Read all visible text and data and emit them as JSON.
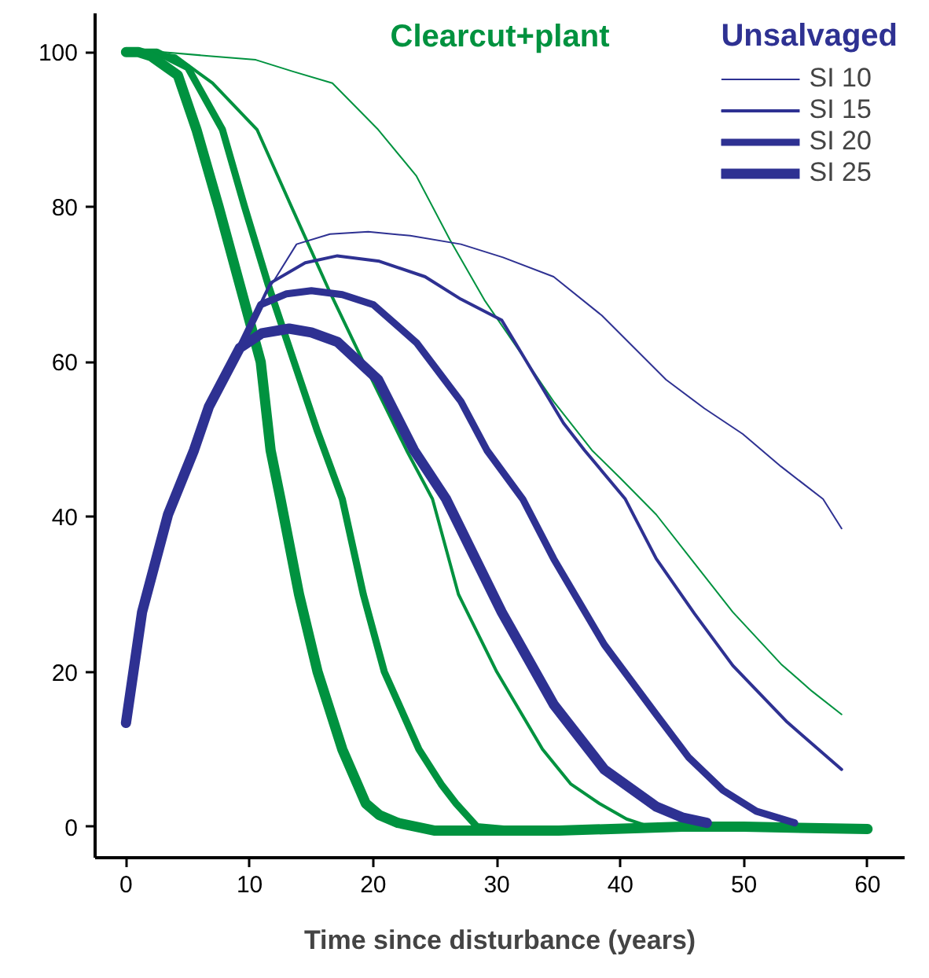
{
  "chart_data": {
    "type": "line",
    "xlabel": "Time since disturbance (years)",
    "legend_title": "Unsalvaged",
    "annotations": [
      "Clearcut+plant"
    ],
    "legend": "top right",
    "grid": false,
    "marker": "none",
    "line_style": "solid",
    "xlim": [
      -2.5,
      63
    ],
    "ylim": [
      -4,
      105
    ],
    "xticks": [
      0,
      10,
      20,
      30,
      40,
      50,
      60
    ],
    "yticks": [
      0,
      20,
      40,
      60,
      80,
      100
    ],
    "series": [
      {
        "color": "#00923f",
        "x": [
          0,
          3,
          6.7,
          10.5,
          13.5,
          16.7,
          20.4,
          23.5,
          26.2,
          29,
          32,
          34.6,
          37.7,
          40,
          42.9,
          46,
          49.1,
          53,
          55.5,
          57.9
        ],
        "values": [
          100,
          100,
          99.5,
          99,
          97.5,
          96,
          90,
          84,
          75.8,
          68,
          61,
          54.9,
          48.6,
          45,
          40.3,
          34,
          27.7,
          21,
          17.5,
          14.5
        ]
      },
      {
        "color": "#00923f",
        "x": [
          0,
          2,
          4,
          7,
          10.6,
          13.4,
          16.5,
          19.2,
          22.7,
          24.8,
          26.9,
          30,
          33.7,
          36,
          38.3,
          40.5,
          42.4
        ],
        "values": [
          100,
          100,
          99.5,
          96,
          90,
          80,
          69,
          60,
          48.6,
          42.3,
          30,
          20,
          10,
          5.5,
          3,
          1,
          0
        ]
      },
      {
        "color": "#00923f",
        "x": [
          0,
          2.5,
          5,
          7.8,
          9.6,
          11.5,
          13.6,
          15.5,
          17.5,
          19.2,
          20.9,
          23.7,
          25.5,
          26.7,
          28.4,
          32,
          40,
          50,
          60
        ],
        "values": [
          100,
          100,
          98,
          90,
          80,
          70,
          60,
          51,
          42.3,
          30,
          20,
          10,
          5.5,
          3,
          0,
          -0.5,
          -0.3,
          0,
          -0.3
        ]
      },
      {
        "color": "#00923f",
        "x": [
          0,
          1,
          2,
          4.2,
          5.7,
          7.5,
          9.2,
          10.9,
          11.7,
          12.5,
          14,
          15.5,
          17.5,
          19.4,
          20.5,
          22,
          25,
          35,
          45,
          50,
          60
        ],
        "values": [
          100,
          100,
          99.5,
          97,
          90,
          80,
          70,
          60,
          48.6,
          42.3,
          30,
          20,
          10,
          3,
          1.5,
          0.5,
          -0.5,
          -0.5,
          0,
          0,
          -0.3
        ]
      },
      {
        "name": "SI 10",
        "color": "#2e3192",
        "x": [
          0,
          1.3,
          3.4,
          5.5,
          6.7,
          9.2,
          11,
          13.8,
          16.5,
          19.6,
          23,
          27.1,
          30.5,
          34.6,
          38.5,
          43.7,
          46.8,
          49.9,
          53,
          56.4,
          57.9
        ],
        "values": [
          13.4,
          27.7,
          40.3,
          48.6,
          54.2,
          61.8,
          68,
          75.2,
          76.5,
          76.8,
          76.3,
          75.2,
          73.5,
          71,
          66,
          57.7,
          54,
          50.7,
          46.5,
          42.3,
          38.5
        ]
      },
      {
        "name": "SI 15",
        "color": "#2e3192",
        "x": [
          0,
          1.3,
          3.4,
          5.5,
          6.7,
          9.2,
          11.7,
          14.5,
          17.1,
          20.5,
          24.2,
          27.1,
          30.4,
          35.4,
          37.1,
          40.4,
          42.9,
          46,
          49.1,
          53.5,
          57.9
        ],
        "values": [
          13.4,
          27.7,
          40.3,
          48.6,
          54.2,
          61.8,
          70.2,
          72.8,
          73.7,
          73,
          71,
          68.1,
          65.4,
          52.1,
          48.6,
          42.3,
          34.6,
          27.5,
          20.8,
          13.5,
          7.4
        ]
      },
      {
        "name": "SI 20",
        "color": "#2e3192",
        "x": [
          0,
          1.3,
          3.4,
          5.5,
          6.7,
          9.2,
          10.9,
          13,
          15,
          17.5,
          20,
          23.5,
          27.1,
          29.2,
          32.1,
          34.6,
          38.7,
          42.9,
          45.5,
          48.3,
          51,
          54.1
        ],
        "values": [
          13.4,
          27.7,
          40.3,
          48.6,
          54.2,
          61.8,
          67.4,
          68.8,
          69.2,
          68.7,
          67.4,
          62.5,
          54.9,
          48.6,
          42.3,
          34.6,
          23.5,
          14.5,
          9,
          4.7,
          2,
          0.5
        ]
      },
      {
        "name": "SI 25",
        "color": "#2e3192",
        "x": [
          0,
          1.3,
          3.4,
          5.5,
          6.7,
          9.2,
          11,
          13.2,
          15,
          17.1,
          20.4,
          23.3,
          25.9,
          28.3,
          30.4,
          34.6,
          38.7,
          42.9,
          45,
          47
        ],
        "values": [
          13.4,
          27.7,
          40.3,
          48.6,
          54.2,
          61.8,
          63.7,
          64.3,
          63.8,
          62.6,
          57.7,
          48.6,
          42.3,
          34.5,
          27.7,
          15.8,
          7.4,
          2.6,
          1.2,
          0.5
        ]
      }
    ]
  }
}
